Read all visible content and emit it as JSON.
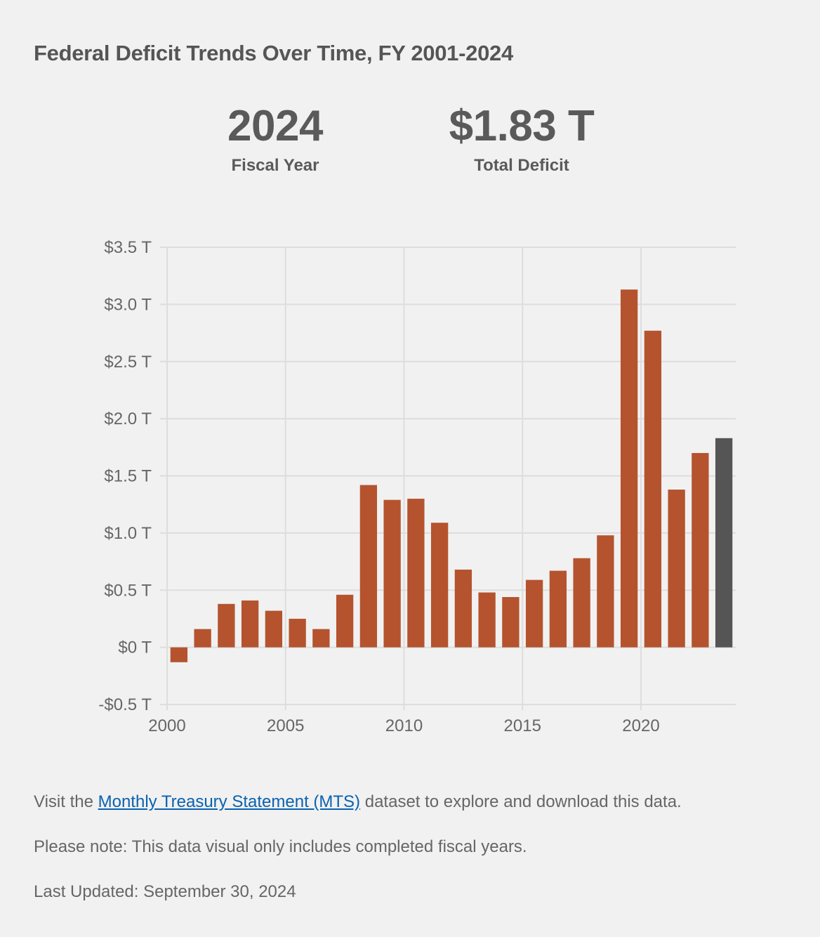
{
  "page": {
    "title": "Federal Deficit Trends Over Time, FY 2001-2024"
  },
  "summary": {
    "fiscal_year_value": "2024",
    "fiscal_year_label": "Fiscal Year",
    "total_deficit_value": "$1.83 T",
    "total_deficit_label": "Total Deficit"
  },
  "footer": {
    "visit_prefix": "Visit the ",
    "mts_link": "Monthly Treasury Statement (MTS)",
    "visit_suffix": " dataset to explore and download this data.",
    "note": "Please note: This data visual only includes completed fiscal years.",
    "last_updated": "Last Updated: September 30, 2024"
  },
  "colors": {
    "bar": "#b5532f",
    "highlight_bar": "#555555",
    "grid": "#dddddd",
    "link": "#0a62b0"
  },
  "chart_data": {
    "type": "bar",
    "title": "Federal Deficit Trends Over Time, FY 2001-2024",
    "x": [
      2001,
      2002,
      2003,
      2004,
      2005,
      2006,
      2007,
      2008,
      2009,
      2010,
      2011,
      2012,
      2013,
      2014,
      2015,
      2016,
      2017,
      2018,
      2019,
      2020,
      2021,
      2022,
      2023,
      2024
    ],
    "values": [
      -0.13,
      0.16,
      0.38,
      0.41,
      0.32,
      0.25,
      0.16,
      0.46,
      1.42,
      1.29,
      1.3,
      1.09,
      0.68,
      0.48,
      0.44,
      0.59,
      0.67,
      0.78,
      0.98,
      3.13,
      2.77,
      1.38,
      1.7,
      1.83
    ],
    "units": "trillions of dollars",
    "highlight": 2024,
    "xlabel": "",
    "ylabel": "",
    "xlim": [
      2000,
      2024
    ],
    "ylim": [
      -0.5,
      3.5
    ],
    "x_ticks": [
      2000,
      2005,
      2010,
      2015,
      2020
    ],
    "y_ticks": [
      -0.5,
      0,
      0.5,
      1.0,
      1.5,
      2.0,
      2.5,
      3.0,
      3.5
    ],
    "y_tick_labels": [
      "-$0.5 T",
      "$0 T",
      "$0.5 T",
      "$1.0 T",
      "$1.5 T",
      "$2.0 T",
      "$2.5 T",
      "$3.0 T",
      "$3.5 T"
    ],
    "grid": true,
    "legend": "none"
  }
}
